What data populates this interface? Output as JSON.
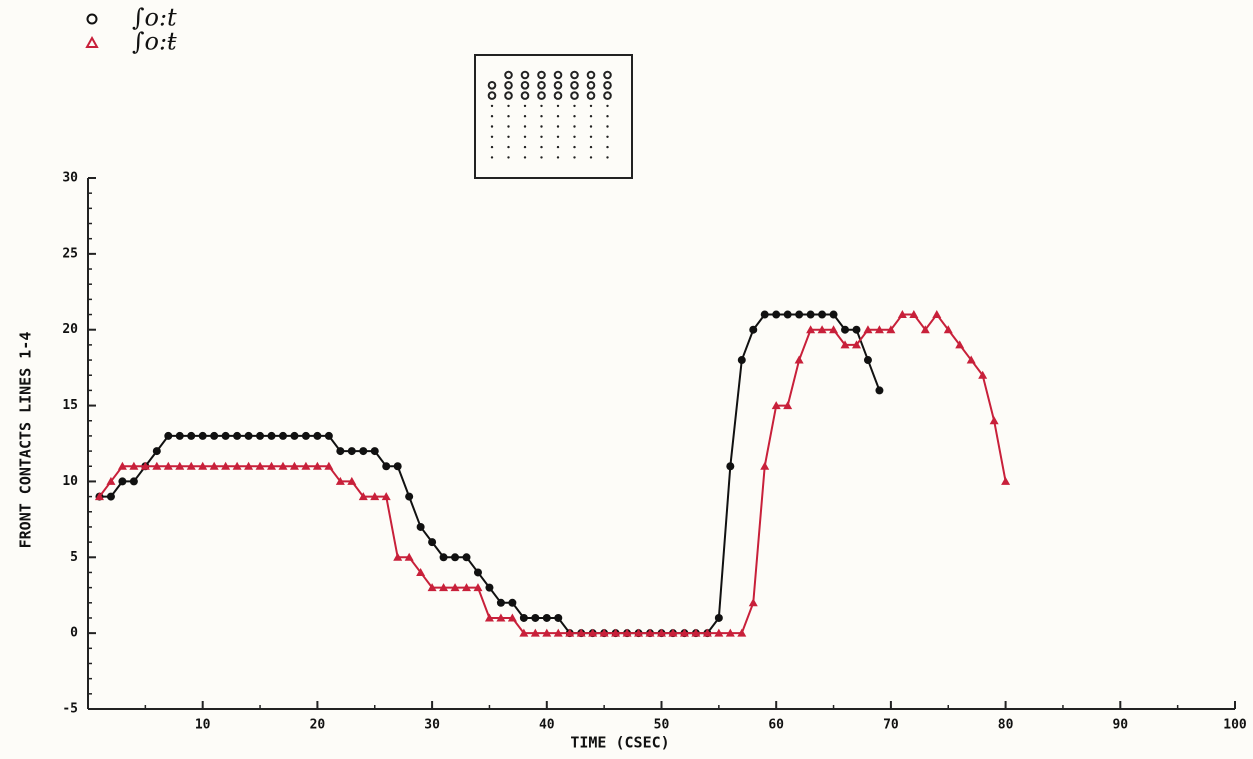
{
  "chart_data": {
    "type": "line",
    "xlabel": "TIME (CSEC)",
    "ylabel": "FRONT CONTACTS  LINES 1-4",
    "x": [
      1,
      2,
      3,
      4,
      5,
      6,
      7,
      8,
      9,
      10,
      11,
      12,
      13,
      14,
      15,
      16,
      17,
      18,
      19,
      20,
      21,
      22,
      23,
      24,
      25,
      26,
      27,
      28,
      29,
      30,
      31,
      32,
      33,
      34,
      35,
      36,
      37,
      38,
      39,
      40,
      41,
      42,
      43,
      44,
      45,
      46,
      47,
      48,
      49,
      50,
      51,
      52,
      53,
      54,
      55,
      56,
      57,
      58,
      59,
      60,
      61,
      62,
      63,
      64,
      65,
      66,
      67,
      68,
      69,
      70,
      71,
      72,
      73,
      74,
      75,
      76,
      77,
      78,
      79,
      80
    ],
    "series": [
      {
        "name": "∫o:t",
        "color": "#111111",
        "marker": "circle",
        "values": [
          9,
          9,
          10,
          10,
          11,
          12,
          13,
          13,
          13,
          13,
          13,
          13,
          13,
          13,
          13,
          13,
          13,
          13,
          13,
          13,
          13,
          12,
          12,
          12,
          12,
          11,
          11,
          9,
          7,
          6,
          5,
          5,
          5,
          4,
          3,
          2,
          2,
          1,
          1,
          1,
          1,
          0,
          0,
          0,
          0,
          0,
          0,
          0,
          0,
          0,
          0,
          0,
          0,
          0,
          1,
          11,
          18,
          20,
          21,
          21,
          21,
          21,
          21,
          21,
          21,
          20,
          20,
          18,
          16,
          null,
          null,
          null,
          null,
          null,
          null,
          null,
          null,
          null,
          null,
          null
        ]
      },
      {
        "name": "∫o:ŧ",
        "color": "#c8203a",
        "marker": "triangle",
        "values": [
          9,
          10,
          11,
          11,
          11,
          11,
          11,
          11,
          11,
          11,
          11,
          11,
          11,
          11,
          11,
          11,
          11,
          11,
          11,
          11,
          11,
          10,
          10,
          9,
          9,
          9,
          5,
          5,
          4,
          3,
          3,
          3,
          3,
          3,
          1,
          1,
          1,
          0,
          0,
          0,
          0,
          0,
          0,
          0,
          0,
          0,
          0,
          0,
          0,
          0,
          0,
          0,
          0,
          0,
          0,
          0,
          0,
          2,
          11,
          15,
          15,
          18,
          20,
          20,
          20,
          19,
          19,
          20,
          20,
          20,
          21,
          21,
          20,
          21,
          20,
          19,
          18,
          17,
          14,
          10
        ]
      }
    ],
    "xlim": [
      0,
      100
    ],
    "xticks": [
      10,
      20,
      30,
      40,
      50,
      60,
      70,
      80,
      90,
      100
    ],
    "ylim": [
      -5,
      30
    ],
    "yticks": [
      -5,
      0,
      5,
      10,
      15,
      20,
      25,
      30
    ]
  }
}
